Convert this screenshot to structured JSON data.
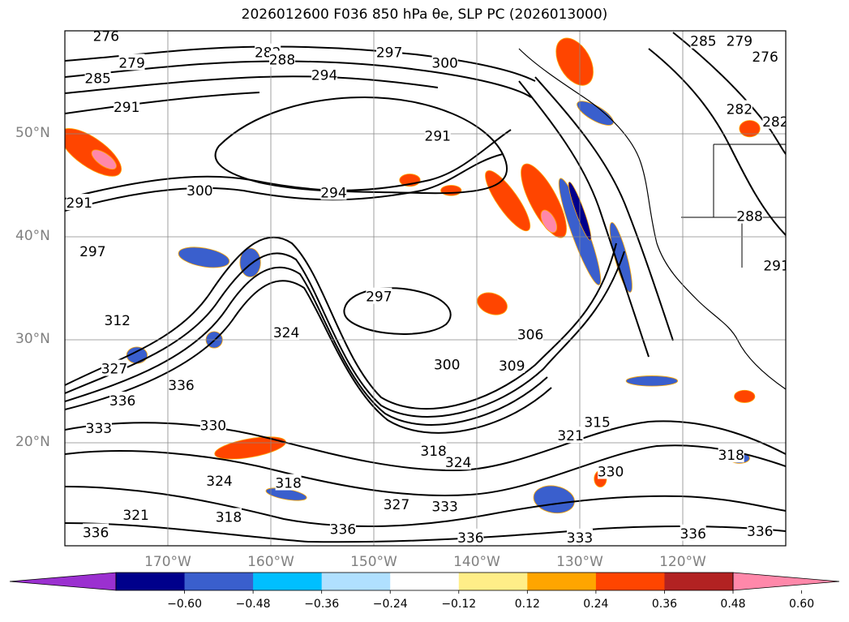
{
  "title": "2026012600 F036 850 hPa θe, SLP PC (2026013000)",
  "map": {
    "projection": "PlateCarree",
    "lon_range": [
      -180,
      -110
    ],
    "lat_range": [
      10,
      60
    ],
    "lat_labels": [
      {
        "lat": 50,
        "text": "50°N"
      },
      {
        "lat": 40,
        "text": "40°N"
      },
      {
        "lat": 30,
        "text": "30°N"
      },
      {
        "lat": 20,
        "text": "20°N"
      }
    ],
    "lon_labels": [
      {
        "lon": -170,
        "text": "170°W"
      },
      {
        "lon": -160,
        "text": "160°W"
      },
      {
        "lon": -150,
        "text": "150°W"
      },
      {
        "lon": -140,
        "text": "140°W"
      },
      {
        "lon": -130,
        "text": "130°W"
      },
      {
        "lon": -120,
        "text": "120°W"
      }
    ],
    "gridlines": true
  },
  "contour_labels": [
    {
      "text": "276",
      "lon": -176.0,
      "lat": 59.5
    },
    {
      "text": "279",
      "lon": -173.5,
      "lat": 56.9
    },
    {
      "text": "285",
      "lon": -176.8,
      "lat": 55.4
    },
    {
      "text": "291",
      "lon": -174.0,
      "lat": 52.6
    },
    {
      "text": "282",
      "lon": -160.3,
      "lat": 57.9
    },
    {
      "text": "288",
      "lon": -158.9,
      "lat": 57.2
    },
    {
      "text": "294",
      "lon": -154.8,
      "lat": 55.7
    },
    {
      "text": "297",
      "lon": -148.5,
      "lat": 57.9
    },
    {
      "text": "300",
      "lon": -143.1,
      "lat": 56.9
    },
    {
      "text": "291",
      "lon": -143.8,
      "lat": 49.8
    },
    {
      "text": "294",
      "lon": -153.9,
      "lat": 44.3
    },
    {
      "text": "300",
      "lon": -166.9,
      "lat": 44.5
    },
    {
      "text": "291",
      "lon": -178.6,
      "lat": 43.3
    },
    {
      "text": "297",
      "lon": -177.3,
      "lat": 38.6
    },
    {
      "text": "297",
      "lon": -149.5,
      "lat": 34.2
    },
    {
      "text": "312",
      "lon": -174.9,
      "lat": 31.9
    },
    {
      "text": "324",
      "lon": -158.5,
      "lat": 30.7
    },
    {
      "text": "300",
      "lon": -142.9,
      "lat": 27.6
    },
    {
      "text": "309",
      "lon": -136.6,
      "lat": 27.5
    },
    {
      "text": "306",
      "lon": -134.8,
      "lat": 30.5
    },
    {
      "text": "327",
      "lon": -175.2,
      "lat": 27.2
    },
    {
      "text": "336",
      "lon": -168.7,
      "lat": 25.6
    },
    {
      "text": "336",
      "lon": -174.4,
      "lat": 24.1
    },
    {
      "text": "333",
      "lon": -176.7,
      "lat": 21.4
    },
    {
      "text": "330",
      "lon": -165.6,
      "lat": 21.7
    },
    {
      "text": "315",
      "lon": -128.3,
      "lat": 22.0
    },
    {
      "text": "321",
      "lon": -130.9,
      "lat": 20.7
    },
    {
      "text": "318",
      "lon": -144.2,
      "lat": 19.2
    },
    {
      "text": "324",
      "lon": -141.8,
      "lat": 18.1
    },
    {
      "text": "330",
      "lon": -127.0,
      "lat": 17.2
    },
    {
      "text": "318",
      "lon": -115.3,
      "lat": 18.8
    },
    {
      "text": "324",
      "lon": -165.0,
      "lat": 16.3
    },
    {
      "text": "318",
      "lon": -158.3,
      "lat": 16.1
    },
    {
      "text": "327",
      "lon": -147.8,
      "lat": 14.0
    },
    {
      "text": "333",
      "lon": -143.1,
      "lat": 13.8
    },
    {
      "text": "318",
      "lon": -164.1,
      "lat": 12.8
    },
    {
      "text": "321",
      "lon": -173.1,
      "lat": 13.0
    },
    {
      "text": "336",
      "lon": -153.0,
      "lat": 11.6
    },
    {
      "text": "336",
      "lon": -177.0,
      "lat": 11.3
    },
    {
      "text": "336",
      "lon": -140.6,
      "lat": 10.8
    },
    {
      "text": "333",
      "lon": -130.0,
      "lat": 10.8
    },
    {
      "text": "336",
      "lon": -119.0,
      "lat": 11.2
    },
    {
      "text": "336",
      "lon": -112.5,
      "lat": 11.4
    },
    {
      "text": "285",
      "lon": -118.0,
      "lat": 59.0
    },
    {
      "text": "279",
      "lon": -114.5,
      "lat": 59.0
    },
    {
      "text": "276",
      "lon": -112.0,
      "lat": 57.5
    },
    {
      "text": "282",
      "lon": -114.5,
      "lat": 52.4
    },
    {
      "text": "282",
      "lon": -111.0,
      "lat": 51.2
    },
    {
      "text": "291",
      "lon": -110.9,
      "lat": 37.2
    },
    {
      "text": "288",
      "lon": -113.5,
      "lat": 42.0
    }
  ],
  "colorbar": {
    "ticks": [
      "−0.60",
      "−0.48",
      "−0.36",
      "−0.24",
      "−0.12",
      "0.12",
      "0.24",
      "0.36",
      "0.48",
      "0.60"
    ],
    "colors": [
      "#9b30d0",
      "#00008b",
      "#3a5fcd",
      "#00bfff",
      "#b0e0ff",
      "#ffffff",
      "#ffee88",
      "#ffa500",
      "#ff4500",
      "#b22222",
      "#ff88aa"
    ],
    "extend": "both"
  },
  "shaded_regions": [
    {
      "color": "#ff4500",
      "lon": -177.5,
      "lat": 48.2,
      "rx": 3.5,
      "ry": 1.4,
      "rot": 35
    },
    {
      "color": "#ff88aa",
      "lon": -176.2,
      "lat": 47.5,
      "rx": 1.4,
      "ry": 0.6,
      "rot": 35
    },
    {
      "color": "#ff4500",
      "lon": -133.5,
      "lat": 43.5,
      "rx": 4.0,
      "ry": 1.3,
      "rot": 62
    },
    {
      "color": "#ff88aa",
      "lon": -133.0,
      "lat": 41.5,
      "rx": 1.2,
      "ry": 0.6,
      "rot": 62
    },
    {
      "color": "#ff4500",
      "lon": -137.0,
      "lat": 43.5,
      "rx": 3.5,
      "ry": 1.0,
      "rot": 55
    },
    {
      "color": "#3a5fcd",
      "lon": -130.0,
      "lat": 40.5,
      "rx": 5.5,
      "ry": 0.8,
      "rot": 70
    },
    {
      "color": "#00008b",
      "lon": -130.0,
      "lat": 42.5,
      "rx": 3.0,
      "ry": 0.4,
      "rot": 70
    },
    {
      "color": "#3a5fcd",
      "lon": -126.0,
      "lat": 38.0,
      "rx": 3.5,
      "ry": 0.6,
      "rot": 75
    },
    {
      "color": "#3a5fcd",
      "lon": -166.5,
      "lat": 38.0,
      "rx": 2.5,
      "ry": 0.9,
      "rot": 10
    },
    {
      "color": "#3a5fcd",
      "lon": -162.0,
      "lat": 37.5,
      "rx": 1.0,
      "ry": 1.4,
      "rot": 0
    },
    {
      "color": "#ff4500",
      "lon": -162.0,
      "lat": 19.5,
      "rx": 3.5,
      "ry": 0.9,
      "rot": -10
    },
    {
      "color": "#ff4500",
      "lon": -138.5,
      "lat": 33.5,
      "rx": 1.5,
      "ry": 1.0,
      "rot": 20
    },
    {
      "color": "#3a5fcd",
      "lon": -132.5,
      "lat": 14.5,
      "rx": 2.0,
      "ry": 1.3,
      "rot": 10
    },
    {
      "color": "#3a5fcd",
      "lon": -173.0,
      "lat": 28.5,
      "rx": 1.0,
      "ry": 0.8,
      "rot": 0
    },
    {
      "color": "#3a5fcd",
      "lon": -123.0,
      "lat": 26.0,
      "rx": 2.5,
      "ry": 0.5,
      "rot": 0
    },
    {
      "color": "#3a5fcd",
      "lon": -114.5,
      "lat": 18.5,
      "rx": 1.0,
      "ry": 0.5,
      "rot": 0
    },
    {
      "color": "#ff4500",
      "lon": -114.0,
      "lat": 24.5,
      "rx": 1.0,
      "ry": 0.6,
      "rot": 0
    },
    {
      "color": "#3a5fcd",
      "lon": -158.5,
      "lat": 15.0,
      "rx": 2.0,
      "ry": 0.5,
      "rot": 10
    },
    {
      "color": "#3a5fcd",
      "lon": -165.5,
      "lat": 30.0,
      "rx": 0.8,
      "ry": 0.8,
      "rot": 0
    },
    {
      "color": "#ff4500",
      "lon": -146.5,
      "lat": 45.5,
      "rx": 1.0,
      "ry": 0.6,
      "rot": 0
    },
    {
      "color": "#ff4500",
      "lon": -142.5,
      "lat": 44.5,
      "rx": 1.0,
      "ry": 0.5,
      "rot": 0
    },
    {
      "color": "#ff4500",
      "lon": -130.5,
      "lat": 57.0,
      "rx": 2.5,
      "ry": 1.5,
      "rot": 60
    },
    {
      "color": "#3a5fcd",
      "lon": -128.5,
      "lat": 52.0,
      "rx": 2.0,
      "ry": 0.7,
      "rot": 30
    },
    {
      "color": "#ff4500",
      "lon": -128.0,
      "lat": 16.5,
      "rx": 0.6,
      "ry": 0.8,
      "rot": 0
    },
    {
      "color": "#ff4500",
      "lon": -113.5,
      "lat": 50.5,
      "rx": 1.0,
      "ry": 0.8,
      "rot": 0
    }
  ]
}
